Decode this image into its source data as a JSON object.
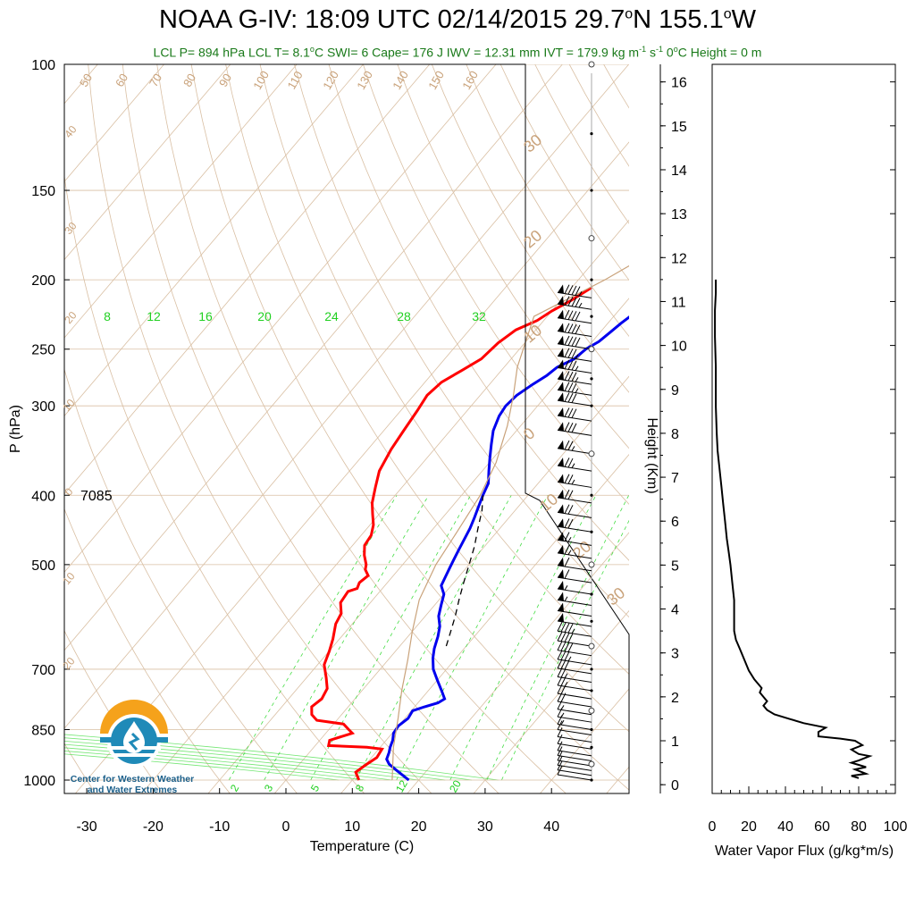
{
  "title": {
    "main": "NOAA G-IV: 18:09 UTC 02/14/2015  29.7",
    "deg1": "o",
    "mid": "N 155.1",
    "deg2": "o",
    "end": "W"
  },
  "subtitle": {
    "part1": "LCL P= 894 hPa  LCL T= 8.1",
    "deg": "o",
    "part2": "C  SWI= 6  Cape= 176 J  IWV = 12.31 mm  IVT = 179.9 kg m",
    "sup1": "-1",
    "part3": " s",
    "sup2": "-1",
    "part4": "  0",
    "deg3": "o",
    "part5": "C Height = 0 m"
  },
  "colors": {
    "temperature": "#ff0000",
    "dewpoint_marker": "#ff0000",
    "temperature_profile": "#0000ee",
    "dry_adiabat": "#d9bfa3",
    "mixing_ratio": "#44dd44",
    "wind": "#000000",
    "ivt_label": "#1a7a1a"
  },
  "logo": {
    "text_line1": "Center for Western Weather",
    "text_line2": "and Water Extremes",
    "icon": "water-drop-sun-icon"
  },
  "annotation_7085": "7085",
  "chart_data": [
    {
      "type": "line",
      "name": "skew-t",
      "xlabel": "Temperature (C)",
      "ylabel": "P (hPa)",
      "xlim": [
        -34,
        51
      ],
      "ylim": [
        1000,
        100
      ],
      "yscale": "log",
      "x_ticks": [
        -30,
        -20,
        -10,
        0,
        10,
        20,
        30,
        40
      ],
      "y_ticks": [
        100,
        150,
        200,
        250,
        300,
        400,
        500,
        700,
        850,
        1000
      ],
      "isotherm_labels": [
        "50",
        "60",
        "70",
        "80",
        "90",
        "100",
        "110",
        "120",
        "130",
        "140",
        "150",
        "160"
      ],
      "theta_labels_left": [
        "40",
        "30",
        "20",
        "10",
        "0",
        "10",
        "20"
      ],
      "theta_labels_right": [
        "30",
        "20",
        "10",
        "0",
        "10",
        "20",
        "30"
      ],
      "mixing_ratio_labels_top": [
        "8",
        "12",
        "16",
        "20",
        "24",
        "28",
        "32"
      ],
      "mixing_ratio_labels_bottom": [
        "2",
        "3",
        "5",
        "8",
        "12",
        "20"
      ],
      "series": [
        {
          "name": "",
          "color": "#ff0000",
          "points": [
            [
              11,
              1000
            ],
            [
              9.5,
              975
            ],
            [
              10,
              955
            ],
            [
              10.8,
              930
            ],
            [
              10.5,
              905
            ],
            [
              8,
              900
            ],
            [
              2,
              895
            ],
            [
              1.5,
              880
            ],
            [
              4,
              860
            ],
            [
              3,
              850
            ],
            [
              1.5,
              835
            ],
            [
              -3,
              825
            ],
            [
              -4.5,
              810
            ],
            [
              -5.5,
              790
            ],
            [
              -5,
              770
            ],
            [
              -5.5,
              745
            ],
            [
              -7,
              720
            ],
            [
              -9,
              690
            ],
            [
              -10,
              660
            ],
            [
              -11,
              635
            ],
            [
              -12.5,
              605
            ],
            [
              -13,
              585
            ],
            [
              -14.5,
              565
            ],
            [
              -14.8,
              545
            ],
            [
              -13.8,
              540
            ],
            [
              -14.2,
              530
            ],
            [
              -13.8,
              518
            ],
            [
              -15,
              508
            ],
            [
              -15.5,
              500
            ],
            [
              -17,
              485
            ],
            [
              -18.2,
              470
            ],
            [
              -18.5,
              455
            ],
            [
              -19.5,
              440
            ],
            [
              -21,
              425
            ],
            [
              -22.5,
              410
            ],
            [
              -24,
              390
            ],
            [
              -25.5,
              370
            ],
            [
              -26.5,
              345
            ],
            [
              -27,
              325
            ],
            [
              -27.5,
              305
            ],
            [
              -28,
              290
            ],
            [
              -27.5,
              278
            ],
            [
              -26,
              268
            ],
            [
              -24.5,
              258
            ],
            [
              -24,
              245
            ],
            [
              -23,
              235
            ],
            [
              -21,
              228
            ],
            [
              -20,
              221
            ],
            [
              -18.5,
              214
            ],
            [
              -17,
              205
            ]
          ]
        },
        {
          "name": "",
          "color": "#0000ee",
          "points": [
            [
              18.5,
              1000
            ],
            [
              17,
              985
            ],
            [
              15.5,
              970
            ],
            [
              13.5,
              950
            ],
            [
              12.5,
              935
            ],
            [
              12,
              915
            ],
            [
              11.5,
              900
            ],
            [
              11,
              880
            ],
            [
              10.2,
              860
            ],
            [
              10,
              840
            ],
            [
              10.5,
              820
            ],
            [
              10.2,
              800
            ],
            [
              11.5,
              790
            ],
            [
              13,
              780
            ],
            [
              13.5,
              770
            ],
            [
              12,
              750
            ],
            [
              10,
              725
            ],
            [
              8,
              700
            ],
            [
              6.5,
              675
            ],
            [
              5.5,
              655
            ],
            [
              4.5,
              630
            ],
            [
              3.5,
              610
            ],
            [
              2,
              590
            ],
            [
              1,
              570
            ],
            [
              0,
              550
            ],
            [
              -1.5,
              535
            ],
            [
              -2,
              520
            ],
            [
              -2.5,
              505
            ],
            [
              -3,
              490
            ],
            [
              -3.5,
              475
            ],
            [
              -4,
              460
            ],
            [
              -4.5,
              445
            ],
            [
              -5.2,
              430
            ],
            [
              -6,
              415
            ],
            [
              -6.8,
              400
            ],
            [
              -7.5,
              385
            ],
            [
              -9,
              370
            ],
            [
              -10.5,
              355
            ],
            [
              -12,
              340
            ],
            [
              -13.5,
              325
            ],
            [
              -14.5,
              310
            ],
            [
              -14.8,
              300
            ],
            [
              -14.5,
              290
            ],
            [
              -13.5,
              280
            ],
            [
              -12.5,
              272
            ],
            [
              -12,
              265
            ],
            [
              -10.5,
              258
            ],
            [
              -10,
              250
            ],
            [
              -9,
              244
            ],
            [
              -8.5,
              237
            ],
            [
              -8,
              230
            ],
            [
              -7.2,
              222
            ],
            [
              -6.2,
              215
            ],
            [
              -5.2,
              209
            ]
          ]
        },
        {
          "name": "",
          "color": "#000000",
          "dash": true,
          "points": [
            [
              7,
              650
            ],
            [
              5.8,
              620
            ],
            [
              4.5,
              590
            ],
            [
              3.0,
              560
            ],
            [
              1.5,
              530
            ],
            [
              0.0,
              500
            ],
            [
              -1.5,
              472
            ],
            [
              -3.3,
              445
            ],
            [
              -5,
              420
            ],
            [
              -6.8,
              400
            ]
          ]
        },
        {
          "name": "",
          "color": "#c9a27a",
          "points": [
            [
              16,
              1000
            ],
            [
              12,
              900
            ],
            [
              9,
              820
            ],
            [
              6,
              750
            ],
            [
              3,
              680
            ],
            [
              0,
              620
            ],
            [
              -3,
              560
            ],
            [
              -5,
              500
            ],
            [
              -6,
              450
            ],
            [
              -7.2,
              400
            ],
            [
              -9,
              360
            ],
            [
              -12,
              320
            ],
            [
              -15,
              290
            ],
            [
              -18,
              265
            ],
            [
              -22,
              225
            ],
            [
              -16,
              200
            ],
            [
              -4,
              150
            ],
            [
              12,
              112
            ],
            [
              20,
              100
            ]
          ]
        }
      ]
    },
    {
      "type": "line",
      "name": "water-vapor-flux",
      "xlabel": "Water Vapor Flux (g/kg*m/s)",
      "ylabel": "Height (Km)",
      "xlim": [
        0,
        100
      ],
      "ylim": [
        -0.2,
        16.4
      ],
      "x_ticks": [
        0,
        20,
        40,
        60,
        80,
        100
      ],
      "y_ticks": [
        0,
        1,
        2,
        3,
        4,
        5,
        6,
        7,
        8,
        9,
        10,
        11,
        12,
        13,
        14,
        15,
        16
      ],
      "points": [
        [
          80,
          0.15
        ],
        [
          76,
          0.2
        ],
        [
          84,
          0.25
        ],
        [
          78,
          0.35
        ],
        [
          84,
          0.4
        ],
        [
          80,
          0.45
        ],
        [
          76,
          0.5
        ],
        [
          80,
          0.55
        ],
        [
          86,
          0.65
        ],
        [
          80,
          0.7
        ],
        [
          76,
          0.8
        ],
        [
          82,
          0.9
        ],
        [
          78,
          1.0
        ],
        [
          70,
          1.05
        ],
        [
          58,
          1.1
        ],
        [
          58,
          1.2
        ],
        [
          62,
          1.3
        ],
        [
          50,
          1.4
        ],
        [
          42,
          1.5
        ],
        [
          34,
          1.6
        ],
        [
          30,
          1.7
        ],
        [
          28,
          1.8
        ],
        [
          30,
          1.9
        ],
        [
          28,
          2.0
        ],
        [
          26,
          2.1
        ],
        [
          27,
          2.2
        ],
        [
          25,
          2.3
        ],
        [
          23,
          2.4
        ],
        [
          20,
          2.6
        ],
        [
          17,
          2.9
        ],
        [
          15,
          3.1
        ],
        [
          13,
          3.3
        ],
        [
          12,
          3.5
        ],
        [
          12,
          3.8
        ],
        [
          12,
          4.2
        ],
        [
          11,
          4.6
        ],
        [
          10,
          5.0
        ],
        [
          9,
          5.3
        ],
        [
          8,
          5.6
        ],
        [
          7,
          6.0
        ],
        [
          6,
          6.4
        ],
        [
          5,
          6.8
        ],
        [
          4,
          7.2
        ],
        [
          3,
          7.6
        ],
        [
          2.5,
          8.0
        ],
        [
          2,
          8.6
        ],
        [
          2,
          9.5
        ],
        [
          1.5,
          10.2
        ],
        [
          1.5,
          10.8
        ],
        [
          2,
          11.2
        ],
        [
          2,
          11.5
        ]
      ]
    },
    {
      "type": "scatter",
      "name": "wind-barbs",
      "columns": [
        "pressure_hpa",
        "speed_kt",
        "direction_deg"
      ],
      "rows": [
        [
          1000,
          10,
          270
        ],
        [
          985,
          10,
          270
        ],
        [
          970,
          10,
          265
        ],
        [
          955,
          10,
          265
        ],
        [
          940,
          10,
          260
        ],
        [
          925,
          10,
          260
        ],
        [
          905,
          10,
          255
        ],
        [
          885,
          10,
          255
        ],
        [
          865,
          10,
          250
        ],
        [
          850,
          15,
          250
        ],
        [
          830,
          15,
          250
        ],
        [
          810,
          15,
          245
        ],
        [
          790,
          20,
          245
        ],
        [
          770,
          20,
          245
        ],
        [
          750,
          25,
          245
        ],
        [
          730,
          25,
          245
        ],
        [
          710,
          30,
          250
        ],
        [
          690,
          35,
          250
        ],
        [
          670,
          40,
          250
        ],
        [
          650,
          40,
          250
        ],
        [
          630,
          45,
          250
        ],
        [
          610,
          50,
          250
        ],
        [
          590,
          50,
          250
        ],
        [
          570,
          55,
          250
        ],
        [
          550,
          55,
          250
        ],
        [
          530,
          60,
          255
        ],
        [
          510,
          60,
          255
        ],
        [
          490,
          65,
          255
        ],
        [
          470,
          65,
          255
        ],
        [
          450,
          70,
          255
        ],
        [
          430,
          70,
          255
        ],
        [
          410,
          70,
          255
        ],
        [
          390,
          75,
          260
        ],
        [
          370,
          75,
          260
        ],
        [
          350,
          75,
          260
        ],
        [
          330,
          80,
          260
        ],
        [
          315,
          80,
          260
        ],
        [
          300,
          80,
          260
        ],
        [
          290,
          85,
          260
        ],
        [
          280,
          85,
          260
        ],
        [
          270,
          85,
          260
        ],
        [
          260,
          85,
          260
        ],
        [
          250,
          90,
          260
        ],
        [
          240,
          90,
          260
        ],
        [
          230,
          90,
          260
        ],
        [
          220,
          95,
          260
        ],
        [
          212,
          95,
          260
        ]
      ]
    }
  ]
}
